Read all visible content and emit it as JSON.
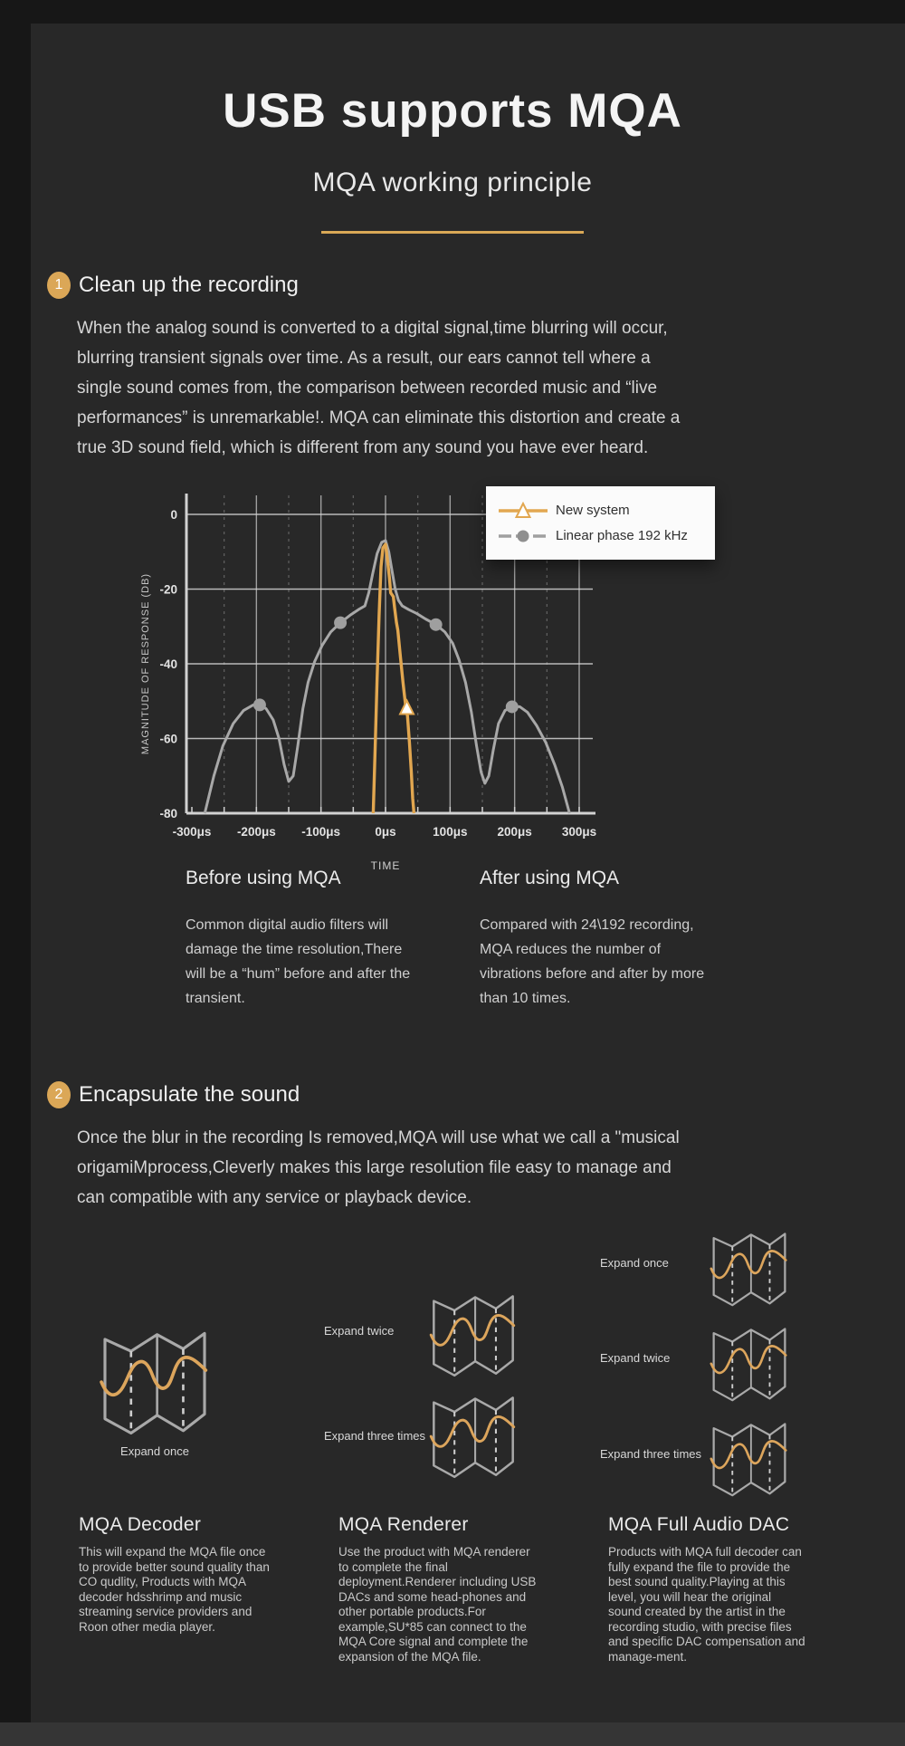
{
  "page": {
    "background": "#282828",
    "accent": "#d9a856"
  },
  "header": {
    "title": "USB supports MQA",
    "subtitle": "MQA working principle"
  },
  "section1": {
    "number": "1",
    "heading": "Clean up the recording",
    "body": "When the analog sound is converted to a digital signal,time blurring will occur, blurring transient signals over time. As a result, our ears cannot tell where a single sound comes from, the comparison between recorded music and “live performances” is unremarkable!. MQA can eliminate this distortion and create a true 3D sound field, which is different from any sound you have ever heard.",
    "before": {
      "title": "Before using MQA",
      "body": "Common digital audio filters will damage the time resolution,There will be a “hum” before and after the transient."
    },
    "after": {
      "title": "After using MQA",
      "body": "Compared with 24\\192 recording, MQA reduces the number of vibrations before and after by more than 10 times."
    }
  },
  "chart_data": {
    "type": "line",
    "title": "",
    "xlabel": "TIME",
    "ylabel": "MAGNITUDE OF RESPONSE (DB)",
    "x_ticks": [
      "-300μs",
      "-200μs",
      "-100μs",
      "0μs",
      "100μs",
      "200μs",
      "300μs"
    ],
    "x_tick_values": [
      -300,
      -200,
      -100,
      0,
      100,
      200,
      300
    ],
    "y_ticks": [
      0,
      -20,
      -40,
      -60,
      -80
    ],
    "xlim": [
      -310,
      310
    ],
    "ylim": [
      -80,
      5
    ],
    "grid": true,
    "legend_position": "top-right",
    "series": [
      {
        "name": "Linear phase 192 kHz",
        "color": "#a8a8a8",
        "marker": "circle",
        "marker_points": [
          [
            -195,
            -51
          ],
          [
            -70,
            -29
          ],
          [
            78,
            -29.5
          ],
          [
            196,
            -51.5
          ]
        ],
        "points": [
          [
            -280,
            -80
          ],
          [
            -266,
            -70
          ],
          [
            -252,
            -62
          ],
          [
            -236,
            -56
          ],
          [
            -220,
            -52.5
          ],
          [
            -205,
            -51
          ],
          [
            -195,
            -51
          ],
          [
            -185,
            -52
          ],
          [
            -174,
            -55
          ],
          [
            -165,
            -60
          ],
          [
            -157,
            -67
          ],
          [
            -150,
            -71.5
          ],
          [
            -143,
            -70
          ],
          [
            -136,
            -62
          ],
          [
            -128,
            -52
          ],
          [
            -120,
            -45
          ],
          [
            -110,
            -39.5
          ],
          [
            -98,
            -35
          ],
          [
            -85,
            -31.5
          ],
          [
            -70,
            -29
          ],
          [
            -55,
            -27
          ],
          [
            -42,
            -25.5
          ],
          [
            -32,
            -24.5
          ],
          [
            -26,
            -21
          ],
          [
            -20,
            -16
          ],
          [
            -13,
            -10.5
          ],
          [
            -6,
            -7.5
          ],
          [
            0,
            -7
          ],
          [
            5,
            -10
          ],
          [
            10,
            -15
          ],
          [
            15,
            -20
          ],
          [
            20,
            -23
          ],
          [
            26,
            -24.5
          ],
          [
            36,
            -25.5
          ],
          [
            48,
            -26.5
          ],
          [
            62,
            -28
          ],
          [
            78,
            -29.5
          ],
          [
            92,
            -31.5
          ],
          [
            104,
            -34.5
          ],
          [
            114,
            -39
          ],
          [
            124,
            -45
          ],
          [
            133,
            -53
          ],
          [
            141,
            -62
          ],
          [
            148,
            -69
          ],
          [
            154,
            -72
          ],
          [
            160,
            -70
          ],
          [
            167,
            -63
          ],
          [
            175,
            -56
          ],
          [
            185,
            -52.5
          ],
          [
            196,
            -51.5
          ],
          [
            208,
            -51.5
          ],
          [
            220,
            -53
          ],
          [
            234,
            -56.5
          ],
          [
            248,
            -61
          ],
          [
            262,
            -67
          ],
          [
            274,
            -73
          ],
          [
            285,
            -80
          ]
        ]
      },
      {
        "name": "New system",
        "color": "#e2a750",
        "marker": "triangle",
        "marker_points": [
          [
            33,
            -52
          ]
        ],
        "points": [
          [
            -19,
            -80
          ],
          [
            -16,
            -62
          ],
          [
            -13,
            -44
          ],
          [
            -10,
            -27
          ],
          [
            -7,
            -14
          ],
          [
            -4,
            -9
          ],
          [
            0,
            -8
          ],
          [
            3,
            -12
          ],
          [
            6,
            -17
          ],
          [
            8,
            -21
          ],
          [
            12,
            -22
          ],
          [
            14,
            -25
          ],
          [
            17,
            -29
          ],
          [
            19,
            -31
          ],
          [
            23,
            -38
          ],
          [
            27,
            -45
          ],
          [
            31,
            -51
          ],
          [
            34,
            -54
          ],
          [
            37,
            -61
          ],
          [
            40,
            -69
          ],
          [
            42,
            -76
          ],
          [
            44,
            -80
          ]
        ]
      }
    ]
  },
  "section2": {
    "number": "2",
    "heading": "Encapsulate the sound",
    "body": "Once the blur in the recording Is removed,MQA will use what we call a \"musical origamiMprocess,Cleverly makes this large resolution file easy to manage and can compatible with any service or playback device."
  },
  "columns": [
    {
      "title": "MQA Decoder",
      "body": "This will expand the MQA file once to provide better sound quality than CO qudlity, Products with MQA decoder hdsshrimp and music streaming service providers and Roon other media player.",
      "icons": [
        {
          "label": "Expand once"
        }
      ]
    },
    {
      "title": "MQA Renderer",
      "body": "Use the product with MQA renderer to complete the final deployment.Renderer including USB DACs and some head-phones and other portable products.For example,SU*85 can connect to the MQA Core signal and complete the expansion of the MQA file.",
      "icons": [
        {
          "label": "Expand twice"
        },
        {
          "label": "Expand three times"
        }
      ]
    },
    {
      "title": "MQA Full Audio DAC",
      "body": "Products with MQA full decoder can fully expand the file to provide the best sound quality.Playing at this level, you will hear the original sound created by the artist in the recording studio, with precise files and specific DAC compensation and manage-ment.",
      "icons": [
        {
          "label": "Expand once"
        },
        {
          "label": "Expand twice"
        },
        {
          "label": "Expand three times"
        }
      ]
    }
  ]
}
